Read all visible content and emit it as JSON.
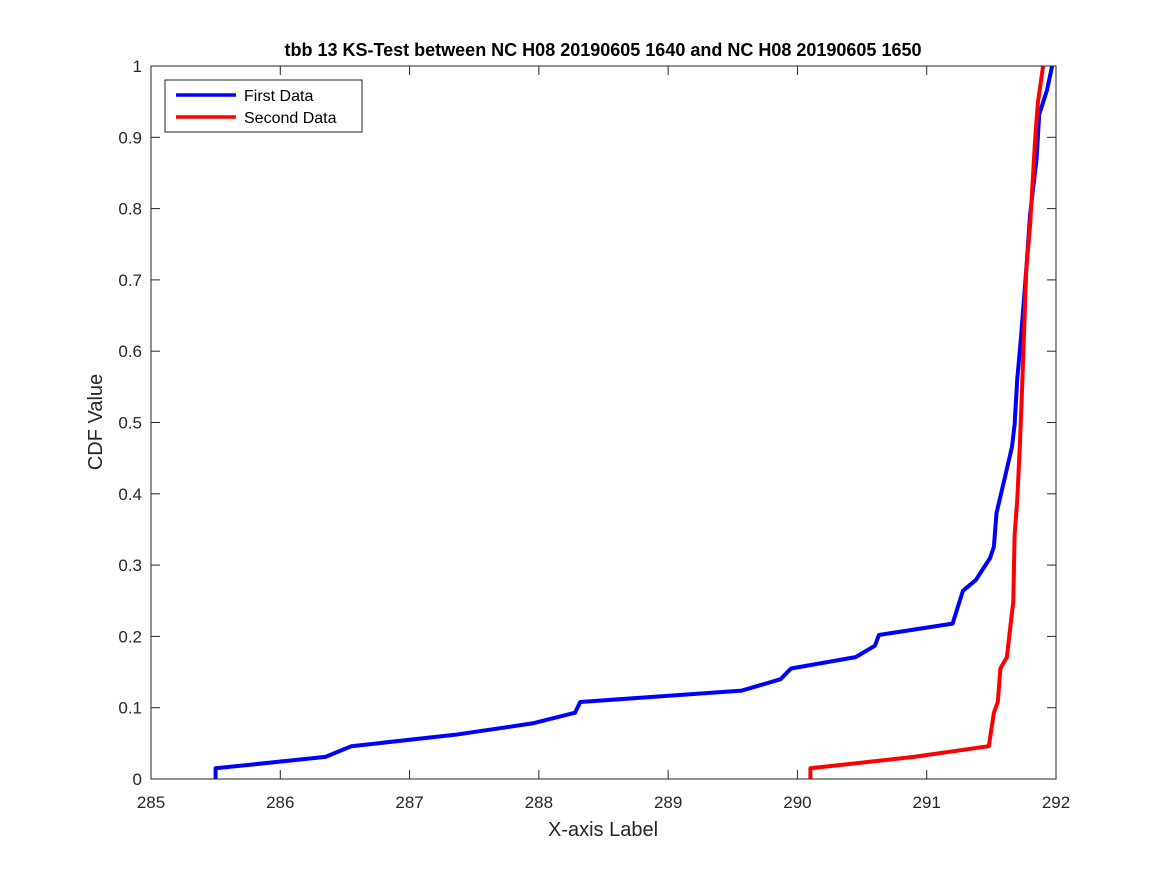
{
  "chart_data": {
    "type": "line",
    "title": "tbb 13 KS-Test between NC H08 20190605 1640 and NC H08 20190605 1650",
    "xlabel": "X-axis Label",
    "ylabel": "CDF Value",
    "xlim": [
      285,
      292
    ],
    "ylim": [
      0,
      1
    ],
    "xticks": [
      "285",
      "286",
      "287",
      "288",
      "289",
      "290",
      "291",
      "292"
    ],
    "yticks": [
      "0",
      "0.1",
      "0.2",
      "0.3",
      "0.4",
      "0.5",
      "0.6",
      "0.7",
      "0.8",
      "0.9",
      "1"
    ],
    "grid": false,
    "legend_location": "top-left",
    "series": [
      {
        "name": "First Data",
        "color": "#0000ff",
        "points": [
          [
            285.5,
            0.0
          ],
          [
            285.5,
            0.015
          ],
          [
            286.35,
            0.031
          ],
          [
            286.55,
            0.046
          ],
          [
            287.35,
            0.062
          ],
          [
            287.95,
            0.078
          ],
          [
            288.28,
            0.093
          ],
          [
            288.32,
            0.108
          ],
          [
            289.57,
            0.124
          ],
          [
            289.87,
            0.14
          ],
          [
            289.95,
            0.155
          ],
          [
            290.45,
            0.171
          ],
          [
            290.6,
            0.187
          ],
          [
            290.63,
            0.202
          ],
          [
            291.2,
            0.218
          ],
          [
            291.28,
            0.264
          ],
          [
            291.38,
            0.279
          ],
          [
            291.49,
            0.31
          ],
          [
            291.52,
            0.326
          ],
          [
            291.54,
            0.373
          ],
          [
            291.58,
            0.404
          ],
          [
            291.62,
            0.435
          ],
          [
            291.66,
            0.466
          ],
          [
            291.68,
            0.497
          ],
          [
            291.7,
            0.56
          ],
          [
            291.73,
            0.621
          ],
          [
            291.77,
            0.715
          ],
          [
            291.8,
            0.792
          ],
          [
            291.85,
            0.87
          ],
          [
            291.87,
            0.932
          ],
          [
            291.93,
            0.966
          ],
          [
            291.97,
            1.0
          ]
        ]
      },
      {
        "name": "Second Data",
        "color": "#ff0000",
        "points": [
          [
            290.1,
            0.0
          ],
          [
            290.1,
            0.015
          ],
          [
            290.9,
            0.031
          ],
          [
            291.48,
            0.046
          ],
          [
            291.52,
            0.093
          ],
          [
            291.55,
            0.108
          ],
          [
            291.57,
            0.155
          ],
          [
            291.62,
            0.171
          ],
          [
            291.65,
            0.218
          ],
          [
            291.67,
            0.249
          ],
          [
            291.68,
            0.342
          ],
          [
            291.7,
            0.39
          ],
          [
            291.72,
            0.466
          ],
          [
            291.74,
            0.56
          ],
          [
            291.77,
            0.715
          ],
          [
            291.8,
            0.777
          ],
          [
            291.84,
            0.901
          ],
          [
            291.86,
            0.949
          ],
          [
            291.9,
            1.0
          ]
        ]
      }
    ]
  }
}
